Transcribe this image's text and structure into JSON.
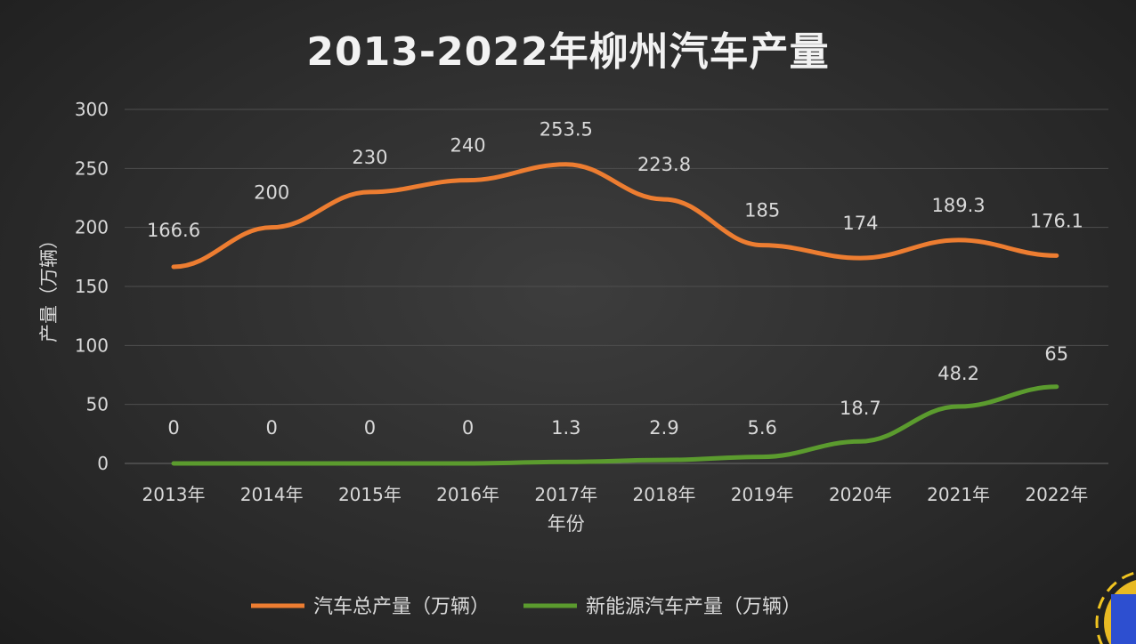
{
  "chart_data": {
    "type": "line",
    "title": "2013-2022年柳州汽车产量",
    "xlabel": "年份",
    "ylabel": "产量（万辆）",
    "categories": [
      "2013年",
      "2014年",
      "2015年",
      "2016年",
      "2017年",
      "2018年",
      "2019年",
      "2020年",
      "2021年",
      "2022年"
    ],
    "ylim": [
      0,
      300
    ],
    "yticks": [
      0,
      50,
      100,
      150,
      200,
      250,
      300
    ],
    "grid": true,
    "legend_position": "bottom",
    "series": [
      {
        "name": "汽车总产量（万辆）",
        "color": "#ed7d31",
        "values": [
          166.6,
          200,
          230,
          240,
          253.5,
          223.8,
          185,
          174,
          189.3,
          176.1
        ],
        "labels": [
          "166.6",
          "200",
          "230",
          "240",
          "253.5",
          "223.8",
          "185",
          "174",
          "189.3",
          "176.1"
        ]
      },
      {
        "name": "新能源汽车产量（万辆）",
        "color": "#5b9b2e",
        "values": [
          0,
          0,
          0,
          0,
          1.3,
          2.9,
          5.6,
          18.7,
          48.2,
          65
        ],
        "labels": [
          "0",
          "0",
          "0",
          "0",
          "1.3",
          "2.9",
          "5.6",
          "18.7",
          "48.2",
          "65"
        ]
      }
    ]
  }
}
